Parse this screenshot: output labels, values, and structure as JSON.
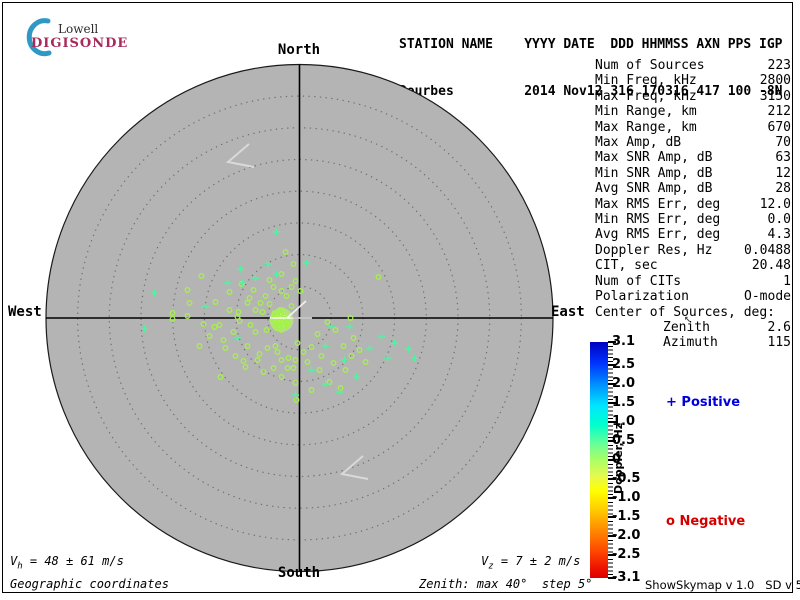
{
  "logo": {
    "name": "Lowell",
    "product": "DIGISONDE",
    "brand_color": "#a8295c",
    "arc_color": "#2f99c6"
  },
  "header": {
    "line1": "STATION NAME    YYYY DATE  DDD HHMMSS AXN PPS IGP",
    "line2": "Dourbes         2014 Nov12 316 170316 417 100 -8N"
  },
  "compass": {
    "north": "North",
    "south": "South",
    "east": "East",
    "west": "West"
  },
  "stats": {
    "rows": [
      {
        "label": "Num of Sources",
        "value": "223"
      },
      {
        "label": "Min Freq, kHz",
        "value": "2800"
      },
      {
        "label": "Max Freq, kHz",
        "value": "3150"
      },
      {
        "label": "Min Range, km",
        "value": "212"
      },
      {
        "label": "Max Range, km",
        "value": "670"
      },
      {
        "label": "Max Amp, dB",
        "value": "70"
      },
      {
        "label": "Max SNR Amp, dB",
        "value": "63"
      },
      {
        "label": "Min SNR Amp, dB",
        "value": "12"
      },
      {
        "label": "Avg SNR Amp, dB",
        "value": "28"
      },
      {
        "label": "Max RMS Err, deg",
        "value": "12.0"
      },
      {
        "label": "Min RMS Err, deg",
        "value": "0.0"
      },
      {
        "label": "Avg RMS Err, deg",
        "value": "4.3"
      },
      {
        "label": "Doppler Res, Hz",
        "value": "0.0488"
      },
      {
        "label": "CIT, sec",
        "value": "20.48"
      },
      {
        "label": "Num of CITs",
        "value": "1"
      },
      {
        "label": "Polarization",
        "value": "O-mode"
      }
    ],
    "center_header": "Center of Sources, deg:",
    "center_rows": [
      {
        "label": "Zenith",
        "value": "2.6"
      },
      {
        "label": "Azimuth",
        "value": "115"
      }
    ]
  },
  "cursor_glyph": "↖",
  "colorbar": {
    "axis_label": "Doppler, Hz",
    "max": 3.1,
    "min": -3.1,
    "tick_values": [
      3.1,
      2.5,
      2.0,
      1.5,
      1.0,
      0.5,
      0,
      -0.5,
      -1.0,
      -1.5,
      -2.0,
      -2.5,
      -3.1
    ],
    "tick_labels": [
      "3.1",
      "2.5",
      "2.0",
      "1.5",
      "1.0",
      "0.5",
      "0",
      "-0.5",
      "-1.0",
      "-1.5",
      "-2.0",
      "-2.5",
      "-3.1"
    ],
    "legend_positive": "+ Positive",
    "legend_negative": "o Negative",
    "positive_color": "#0000dd",
    "negative_color": "#d40000"
  },
  "footer": {
    "vh_sym": "V",
    "vh_sub": "h",
    "vh_rest": " = 48 ± 61 m/s",
    "vz_sym": "V",
    "vz_sub": "z",
    "vz_rest": " = 7 ± 2 m/s",
    "coords_label": "Geographic coordinates",
    "zenith_label": "Zenith: max 40°  step 5°",
    "version": "ShowSkymap v 1.0   SD v 5.1"
  },
  "chart_data": {
    "type": "scatter",
    "projection": "polar-skymap",
    "title": "Digisonde drift skymap, Dourbes 2014 Nov12 316 170316",
    "zenith_max_deg": 40,
    "zenith_step_deg": 5,
    "orientation": {
      "top": "North",
      "bottom": "South",
      "left": "West",
      "right": "East"
    },
    "doppler_axis": {
      "label": "Doppler, Hz",
      "min": -3.1,
      "max": 3.1
    },
    "num_sources": 223,
    "center_of_sources_deg": {
      "zenith": 2.6,
      "azimuth": 115
    },
    "units": "px offsets from plot center (299.5,318); 31.7 px = 5 deg zenith",
    "series": [
      {
        "name": "negative-doppler-sources",
        "marker": "o",
        "color": "#a6f04e",
        "points": [
          [
            -24,
            0
          ],
          [
            -20,
            2
          ],
          [
            -17,
            4
          ],
          [
            -15,
            1
          ],
          [
            -19,
            -2
          ],
          [
            -22,
            5
          ],
          [
            -16,
            7
          ],
          [
            -13,
            3
          ],
          [
            -21,
            8
          ],
          [
            -18,
            -4
          ],
          [
            -14,
            -2
          ],
          [
            -25,
            3
          ],
          [
            -23,
            -3
          ],
          [
            -19,
            6
          ],
          [
            -16,
            -6
          ],
          [
            -12,
            0
          ],
          [
            -26,
            6
          ],
          [
            -20,
            10
          ],
          [
            -15,
            9
          ],
          [
            -17,
            -8
          ],
          [
            -11,
            5
          ],
          [
            -22,
            -6
          ],
          [
            -27,
            1
          ],
          [
            -13,
            8
          ],
          [
            -10,
            2
          ],
          [
            -18,
            12
          ],
          [
            -21,
            3
          ],
          [
            -24,
            8
          ],
          [
            -14,
            5
          ],
          [
            -19,
            0
          ],
          [
            -16,
            2
          ],
          [
            -23,
            10
          ],
          [
            -12,
            -4
          ],
          [
            -25,
            -5
          ],
          [
            -20,
            -8
          ],
          [
            -14,
            -66
          ],
          [
            -6,
            -54
          ],
          [
            -127,
            1
          ],
          [
            51,
            0
          ],
          [
            79,
            -41
          ],
          [
            54,
            20
          ],
          [
            52,
            38
          ],
          [
            41,
            70
          ],
          [
            -54,
            49
          ],
          [
            -79,
            59
          ],
          [
            -98,
            -42
          ],
          [
            -112,
            -28
          ],
          [
            -110,
            -15
          ],
          [
            -127,
            -5
          ],
          [
            -112,
            -2
          ],
          [
            -61,
            -6
          ],
          [
            -80,
            7
          ],
          [
            -85,
            9
          ],
          [
            -76,
            22
          ],
          [
            -50,
            -20
          ],
          [
            -52,
            -15
          ],
          [
            -60,
            3
          ],
          [
            -62,
            -1
          ],
          [
            -49,
            7
          ],
          [
            -39,
            -15
          ],
          [
            -37,
            -6
          ],
          [
            -56,
            43
          ],
          [
            -42,
            42
          ],
          [
            -32,
            30
          ],
          [
            -24,
            28
          ],
          [
            -11,
            40
          ],
          [
            -2,
            25
          ],
          [
            34,
            45
          ],
          [
            22,
            38
          ],
          [
            12,
            29
          ],
          [
            4,
            34
          ],
          [
            -4,
            42
          ],
          [
            -12,
            50
          ],
          [
            -18,
            42
          ],
          [
            -26,
            50
          ],
          [
            -18,
            59
          ],
          [
            -4,
            65
          ],
          [
            12,
            72
          ],
          [
            30,
            64
          ],
          [
            46,
            52
          ],
          [
            -18,
            -44
          ],
          [
            -4,
            -37
          ],
          [
            -8,
            -31
          ],
          [
            1,
            -27
          ],
          [
            -18,
            -27
          ],
          [
            -13,
            -22
          ],
          [
            -26,
            -31
          ],
          [
            -30,
            -38
          ],
          [
            -70,
            -8
          ],
          [
            -66,
            14
          ],
          [
            -90,
            18
          ],
          [
            -100,
            28
          ],
          [
            -44,
            -8
          ],
          [
            -33,
            12
          ],
          [
            -30,
            -14
          ],
          [
            -40,
            36
          ],
          [
            -52,
            28
          ],
          [
            -8,
            -12
          ],
          [
            -34,
            -22
          ],
          [
            -46,
            -28
          ],
          [
            -58,
            -34
          ],
          [
            -70,
            -26
          ],
          [
            -84,
            -16
          ],
          [
            -96,
            6
          ],
          [
            -74,
            30
          ],
          [
            -64,
            38
          ],
          [
            -36,
            54
          ],
          [
            -22,
            34
          ],
          [
            -6,
            50
          ],
          [
            8,
            44
          ],
          [
            20,
            52
          ],
          [
            44,
            28
          ],
          [
            60,
            32
          ],
          [
            66,
            44
          ],
          [
            36,
            12
          ],
          [
            28,
            4
          ],
          [
            -3,
            82
          ],
          [
            -44,
            14
          ],
          [
            18,
            16
          ]
        ]
      },
      {
        "name": "positive-doppler-sources",
        "marker": "+",
        "color": "#4ef59e",
        "points": [
          [
            -23,
            -86
          ],
          [
            -59,
            -49
          ],
          [
            -145,
            -25
          ],
          [
            -155,
            11
          ],
          [
            32,
            9
          ],
          [
            82,
            19
          ],
          [
            95,
            25
          ],
          [
            109,
            31
          ],
          [
            115,
            40
          ],
          [
            57,
            59
          ],
          [
            -4,
            77
          ],
          [
            -32,
            -54
          ],
          [
            -23,
            -44
          ],
          [
            -72,
            -35
          ],
          [
            -57,
            -35
          ],
          [
            -94,
            -11
          ],
          [
            7,
            -55
          ],
          [
            26,
            66
          ],
          [
            70,
            30
          ],
          [
            45,
            42
          ],
          [
            88,
            40
          ],
          [
            -44,
            -40
          ],
          [
            26,
            28
          ],
          [
            -62,
            20
          ],
          [
            12,
            52
          ],
          [
            50,
            9
          ],
          [
            40,
            74
          ]
        ]
      }
    ],
    "decorations": {
      "arrows": [
        [
          249,
          144,
          228,
          162,
          254,
          167
        ],
        [
          363,
          456,
          342,
          474,
          368,
          479
        ]
      ],
      "center_marker_lines": [
        [
          306,
          301,
          287,
          318
        ],
        [
          270,
          318,
          312,
          318
        ]
      ]
    }
  }
}
